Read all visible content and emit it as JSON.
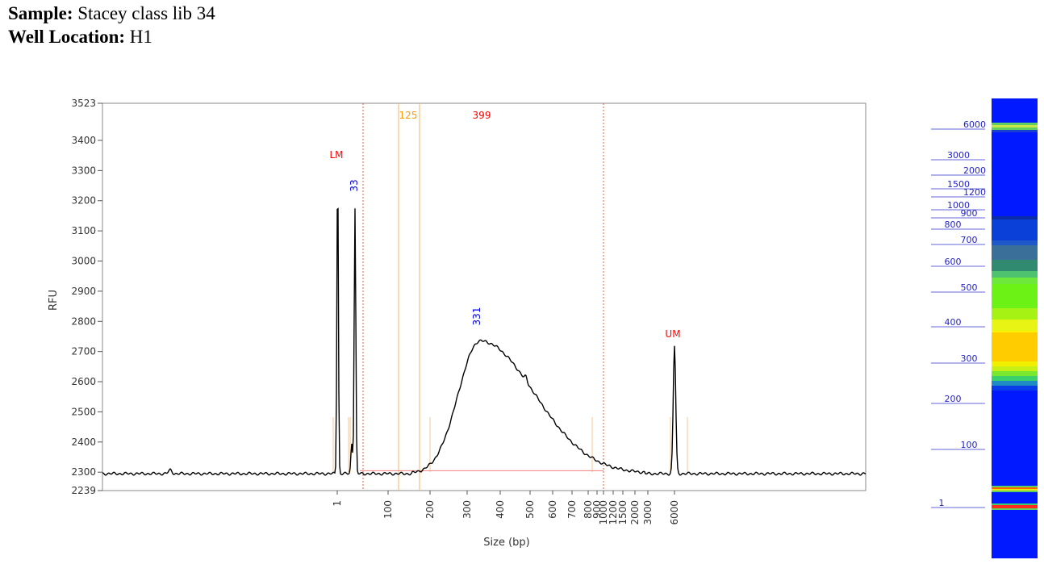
{
  "header": {
    "sample_label": "Sample:",
    "sample_value": "Stacey class lib 34",
    "well_label": "Well Location:",
    "well_value": "H1"
  },
  "chart_data": {
    "type": "line",
    "xlabel": "Size (bp)",
    "ylabel": "RFU",
    "ylim": [
      2239,
      3523
    ],
    "y_ticks": [
      2239,
      2300,
      2400,
      2500,
      2600,
      2700,
      2800,
      2900,
      3000,
      3100,
      3200,
      3300,
      3400,
      3523
    ],
    "x_tick_labels": [
      "1",
      "100",
      "200",
      "300",
      "400",
      "500",
      "600",
      "700",
      "800",
      "900",
      "1000",
      "1200",
      "1500",
      "2000",
      "3000",
      "6000"
    ],
    "baseline_rfu": 2300,
    "smear_region": {
      "start_label": "125",
      "end_label": "399"
    },
    "annotations": [
      {
        "text": "LM",
        "color": "#ff0000"
      },
      {
        "text": "33",
        "color": "#0000ee"
      },
      {
        "text": "331",
        "color": "#0000ee"
      },
      {
        "text": "UM",
        "color": "#ff0000"
      },
      {
        "text": "125",
        "color": "#ff9900"
      },
      {
        "text": "399",
        "color": "#ff0000"
      }
    ],
    "peaks": [
      {
        "label": "LM",
        "size_bp": 1,
        "rfu": 3320
      },
      {
        "label": "33",
        "size_bp": 33,
        "rfu": 3180
      },
      {
        "label": "331",
        "size_bp": 331,
        "rfu": 2750
      },
      {
        "label": "UM",
        "size_bp": 6000,
        "rfu": 2725
      }
    ],
    "grid": false,
    "legend": "none"
  },
  "gel": {
    "ladder_labels": [
      "6000",
      "3000",
      "2000",
      "1500",
      "1200",
      "1000",
      "900",
      "800",
      "700",
      "600",
      "500",
      "400",
      "300",
      "200",
      "100",
      "1"
    ]
  }
}
